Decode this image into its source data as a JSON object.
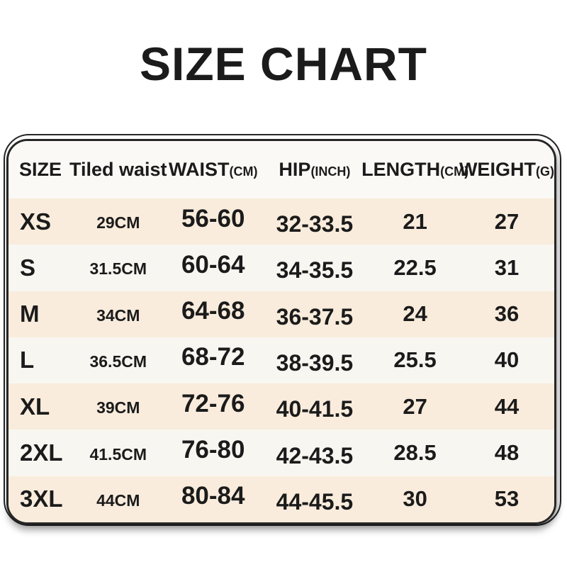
{
  "title": "SIZE CHART",
  "colors": {
    "page_bg": "#ffffff",
    "border": "#262626",
    "text": "#1b1b1b",
    "cream_row": "#f9ecdc",
    "light_row": "#f8f6f1",
    "header_band": "#fbf9f6"
  },
  "table": {
    "columns": [
      {
        "label": "SIZE",
        "unit": ""
      },
      {
        "label": "Tiled waist",
        "unit": ""
      },
      {
        "label": "WAIST",
        "unit": "(CM)"
      },
      {
        "label": "HIP",
        "unit": "(INCH)"
      },
      {
        "label": "LENGTH",
        "unit": "(CM)"
      },
      {
        "label": "WEIGHT",
        "unit": "(G)"
      }
    ],
    "rows": [
      {
        "size": "XS",
        "tiled_waist": "29CM",
        "waist": "56-60",
        "hip": "32-33.5",
        "length": "21",
        "weight": "27"
      },
      {
        "size": "S",
        "tiled_waist": "31.5CM",
        "waist": "60-64",
        "hip": "34-35.5",
        "length": "22.5",
        "weight": "31"
      },
      {
        "size": "M",
        "tiled_waist": "34CM",
        "waist": "64-68",
        "hip": "36-37.5",
        "length": "24",
        "weight": "36"
      },
      {
        "size": "L",
        "tiled_waist": "36.5CM",
        "waist": "68-72",
        "hip": "38-39.5",
        "length": "25.5",
        "weight": "40"
      },
      {
        "size": "XL",
        "tiled_waist": "39CM",
        "waist": "72-76",
        "hip": "40-41.5",
        "length": "27",
        "weight": "44"
      },
      {
        "size": "2XL",
        "tiled_waist": "41.5CM",
        "waist": "76-80",
        "hip": "42-43.5",
        "length": "28.5",
        "weight": "48"
      },
      {
        "size": "3XL",
        "tiled_waist": "44CM",
        "waist": "80-84",
        "hip": "44-45.5",
        "length": "30",
        "weight": "53"
      }
    ]
  }
}
